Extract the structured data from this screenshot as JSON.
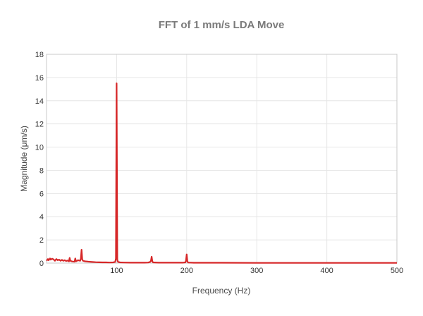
{
  "chart_data": {
    "type": "line",
    "title": "FFT of 1 mm/s LDA Move",
    "xlabel": "Frequency (Hz)",
    "ylabel": "Magnitude (μm/s)",
    "xlim": [
      0,
      500
    ],
    "ylim": [
      0,
      18
    ],
    "xticks": [
      100,
      200,
      300,
      400,
      500
    ],
    "yticks": [
      0,
      2,
      4,
      6,
      8,
      10,
      12,
      14,
      16,
      18
    ],
    "grid": true,
    "line_color": "#d62728",
    "series": [
      {
        "x": [
          0,
          2,
          3,
          5,
          6,
          8,
          10,
          12,
          14,
          16,
          18,
          20,
          22,
          24,
          26,
          28,
          30,
          32,
          33,
          34,
          36,
          40,
          41,
          42,
          45,
          48,
          49,
          50,
          51,
          52,
          55,
          60,
          65,
          70,
          75,
          80,
          85,
          90,
          95,
          98,
          99,
          100,
          101,
          102,
          105,
          110,
          120,
          130,
          140,
          145,
          148,
          149,
          150,
          151,
          152,
          160,
          180,
          195,
          198,
          199,
          200,
          201,
          202,
          210,
          250,
          300,
          350,
          400,
          450,
          500
        ],
        "y": [
          0.2,
          0.35,
          0.25,
          0.4,
          0.3,
          0.38,
          0.32,
          0.2,
          0.35,
          0.25,
          0.3,
          0.2,
          0.28,
          0.2,
          0.25,
          0.18,
          0.22,
          0.15,
          0.45,
          0.2,
          0.15,
          0.12,
          0.4,
          0.15,
          0.25,
          0.2,
          0.4,
          1.15,
          0.3,
          0.2,
          0.15,
          0.12,
          0.1,
          0.08,
          0.07,
          0.06,
          0.06,
          0.05,
          0.06,
          0.1,
          0.4,
          15.5,
          0.3,
          0.1,
          0.06,
          0.05,
          0.04,
          0.04,
          0.04,
          0.05,
          0.1,
          0.2,
          0.55,
          0.15,
          0.06,
          0.04,
          0.04,
          0.04,
          0.06,
          0.2,
          0.75,
          0.15,
          0.05,
          0.03,
          0.03,
          0.02,
          0.02,
          0.02,
          0.02,
          0.02
        ]
      }
    ]
  }
}
